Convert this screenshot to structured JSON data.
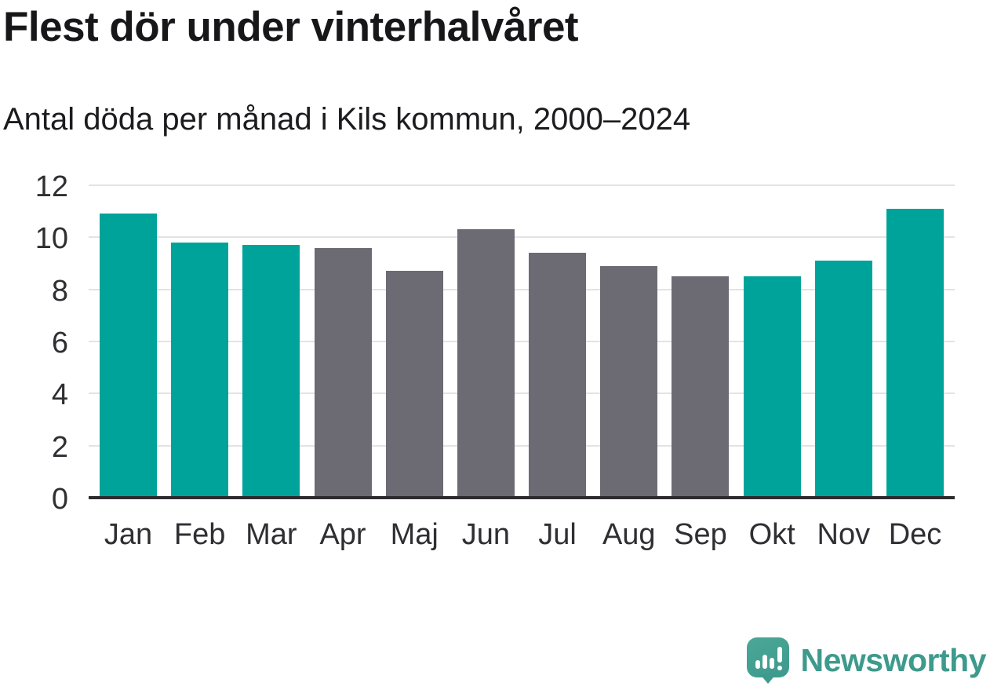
{
  "chart_data": {
    "type": "bar",
    "title": "Flest dör under vinterhalvåret",
    "subtitle": "Antal döda per månad i Kils kommun, 2000–2024",
    "categories": [
      "Jan",
      "Feb",
      "Mar",
      "Apr",
      "Maj",
      "Jun",
      "Jul",
      "Aug",
      "Sep",
      "Okt",
      "Nov",
      "Dec"
    ],
    "values": [
      10.9,
      9.8,
      9.7,
      9.6,
      8.7,
      10.3,
      9.4,
      8.9,
      8.5,
      8.5,
      9.1,
      11.1
    ],
    "bar_colors": [
      "#00a39a",
      "#00a39a",
      "#00a39a",
      "#6c6a73",
      "#6c6a73",
      "#6c6a73",
      "#6c6a73",
      "#6c6a73",
      "#6c6a73",
      "#00a39a",
      "#00a39a",
      "#00a39a"
    ],
    "colors": {
      "winter_months_teal": "#00a39a",
      "summer_months_gray": "#6c6a73",
      "gridline": "#e3e3e3",
      "axis": "#2d2b2e"
    },
    "y_ticks": [
      0,
      2,
      4,
      6,
      8,
      10,
      12
    ],
    "ylim": [
      0,
      12
    ],
    "xlabel": "",
    "ylabel": "",
    "grid": "horizontal",
    "legend": "none"
  },
  "branding": {
    "logo_text": "Newsworthy",
    "logo_color": "#3d9a8c",
    "logo_icon": "speech-bubble-bar-chart-icon"
  }
}
